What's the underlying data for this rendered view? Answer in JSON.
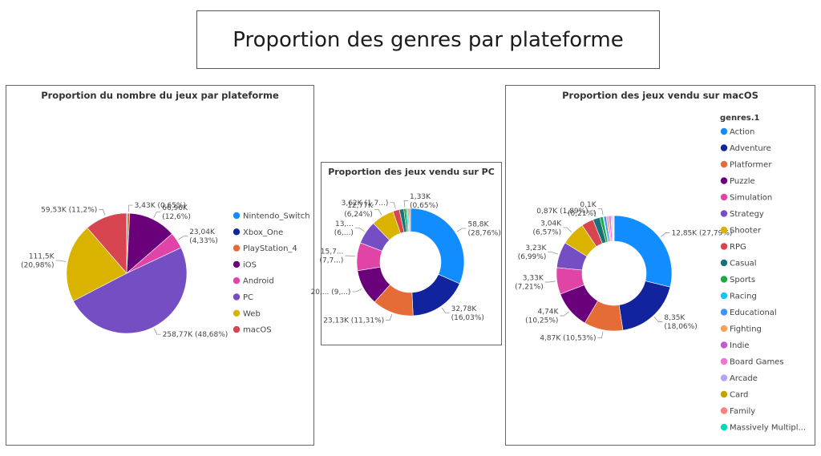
{
  "page": {
    "title": "Proportion des genres par plateforme"
  },
  "colors": {
    "platforms": [
      "#118DFF",
      "#12239E",
      "#E66C37",
      "#6B007B",
      "#E044A7",
      "#744EC2",
      "#D9B300",
      "#D64550"
    ],
    "genres": [
      "#118DFF",
      "#12239E",
      "#E66C37",
      "#6B007B",
      "#E044A7",
      "#744EC2",
      "#D9B300",
      "#D64550",
      "#197278",
      "#1AAB40",
      "#15C6F4",
      "#4092FF",
      "#FFA058",
      "#BE5DC9",
      "#F472D0",
      "#B5A1FF",
      "#C4A200",
      "#FF8080",
      "#00DBBC"
    ]
  },
  "chart_data": [
    {
      "type": "pie",
      "title": "Proportion du nombre du jeux par plateforme",
      "categories": [
        "Nintendo_Switch",
        "Xbox_One",
        "PlayStation_4",
        "iOS",
        "Android",
        "PC",
        "Web",
        "macOS"
      ],
      "values": [
        500,
        400,
        3430,
        66960,
        23040,
        258770,
        111500,
        59530
      ],
      "data_labels": [
        "",
        "",
        "3,43K (0,65%)",
        "66,96K (12,6%)",
        "23,04K (4,33%)",
        "258,77K (48,68%)",
        "111,5K (20,98%)",
        "59,53K (11,2%)"
      ],
      "legend": [
        "Nintendo_Switch",
        "Xbox_One",
        "PlayStation_4",
        "iOS",
        "Android",
        "PC",
        "Web",
        "macOS"
      ],
      "legend_position": "right"
    },
    {
      "type": "donut",
      "title": "Proportion des jeux vendu sur PC",
      "values": [
        58800,
        32780,
        23130,
        20000,
        15700,
        13000,
        12770,
        3620,
        2500,
        1330,
        800,
        600,
        1000
      ],
      "data_labels": [
        "58,8K (28,76%)",
        "32,78K (16,03%)",
        "23,13K (11,31%)",
        "20,... (9,...)",
        "15,7... (7,7...)",
        "13,... (6,...)",
        "12,77K (6,24%)",
        "3,62K (1,7...)",
        "",
        "1,33K (0,65%)",
        "",
        "",
        ""
      ]
    },
    {
      "type": "donut",
      "title": "Proportion des jeux vendu sur macOS",
      "categories": [
        "Action",
        "Adventure",
        "Platformer",
        "Puzzle",
        "Simulation",
        "Strategy",
        "Shooter",
        "RPG",
        "Casual",
        "Sports",
        "Racing",
        "Educational",
        "Fighting",
        "Indie",
        "Board Games",
        "Arcade",
        "Card",
        "Family",
        "Massively Multipl..."
      ],
      "values": [
        12850,
        8350,
        4870,
        4740,
        3330,
        3230,
        3040,
        1500,
        870,
        400,
        100,
        300,
        200,
        150,
        250,
        120,
        100,
        90,
        80
      ],
      "data_labels": [
        "12,85K (27,79%)",
        "8,35K (18,06%)",
        "4,87K (10,53%)",
        "4,74K (10,25%)",
        "3,33K (7,21%)",
        "3,23K (6,99%)",
        "3,04K (6,57%)",
        "",
        "0,87K (1,89%)",
        "",
        "0,1K (0,21%)",
        "",
        "",
        "",
        "",
        "",
        "",
        "",
        ""
      ],
      "legend_title": "genres.1",
      "legend_position": "right"
    }
  ]
}
